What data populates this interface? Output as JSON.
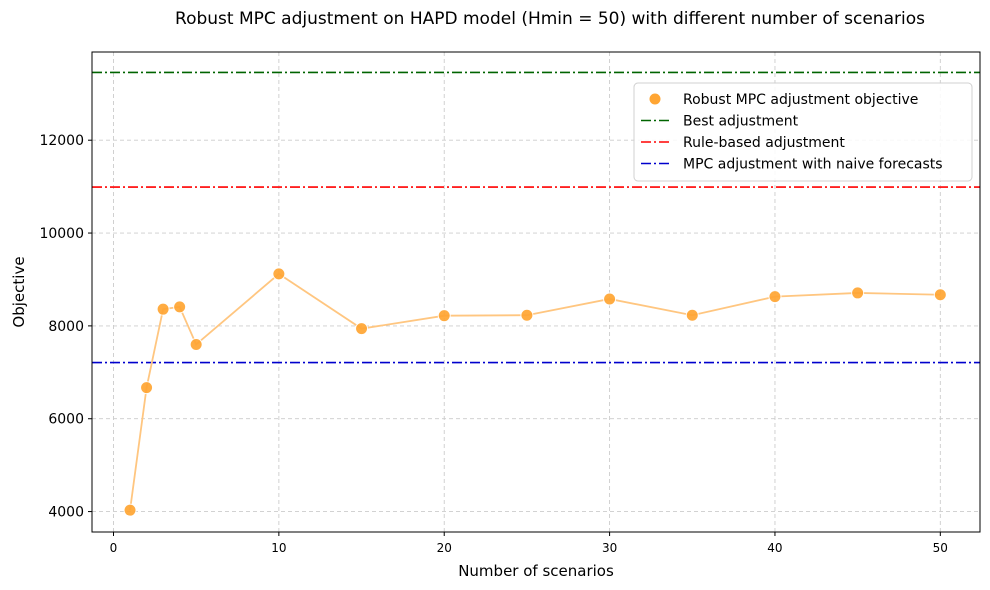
{
  "chart_data": {
    "type": "scatter",
    "title": "Robust MPC adjustment on HAPD model (Hmin = 50) with different number of scenarios",
    "xlabel": "Number of scenarios",
    "ylabel": "Objective",
    "xlim": [
      -1.3,
      52.4
    ],
    "ylim": [
      3560,
      13900
    ],
    "xticks": [
      0,
      10,
      20,
      30,
      40,
      50
    ],
    "yticks": [
      4000,
      6000,
      8000,
      10000,
      12000
    ],
    "grid": true,
    "legend_position": "upper-right",
    "series": [
      {
        "name": "Robust MPC adjustment objective",
        "marker_color": "#ffa533",
        "line_color": "#ffc680",
        "x": [
          1,
          2,
          3,
          4,
          5,
          10,
          15,
          20,
          25,
          30,
          35,
          40,
          45,
          50
        ],
        "y": [
          4030,
          6670,
          8360,
          8410,
          7600,
          9120,
          7940,
          8220,
          8230,
          8580,
          8230,
          8630,
          8710,
          8670
        ]
      }
    ],
    "reference_lines": [
      {
        "name": "Best adjustment",
        "y": 13460,
        "color": "#006400"
      },
      {
        "name": "Rule-based adjustment",
        "y": 10990,
        "color": "#ff0000"
      },
      {
        "name": "MPC adjustment with naive forecasts",
        "y": 7210,
        "color": "#0000cd"
      }
    ]
  }
}
